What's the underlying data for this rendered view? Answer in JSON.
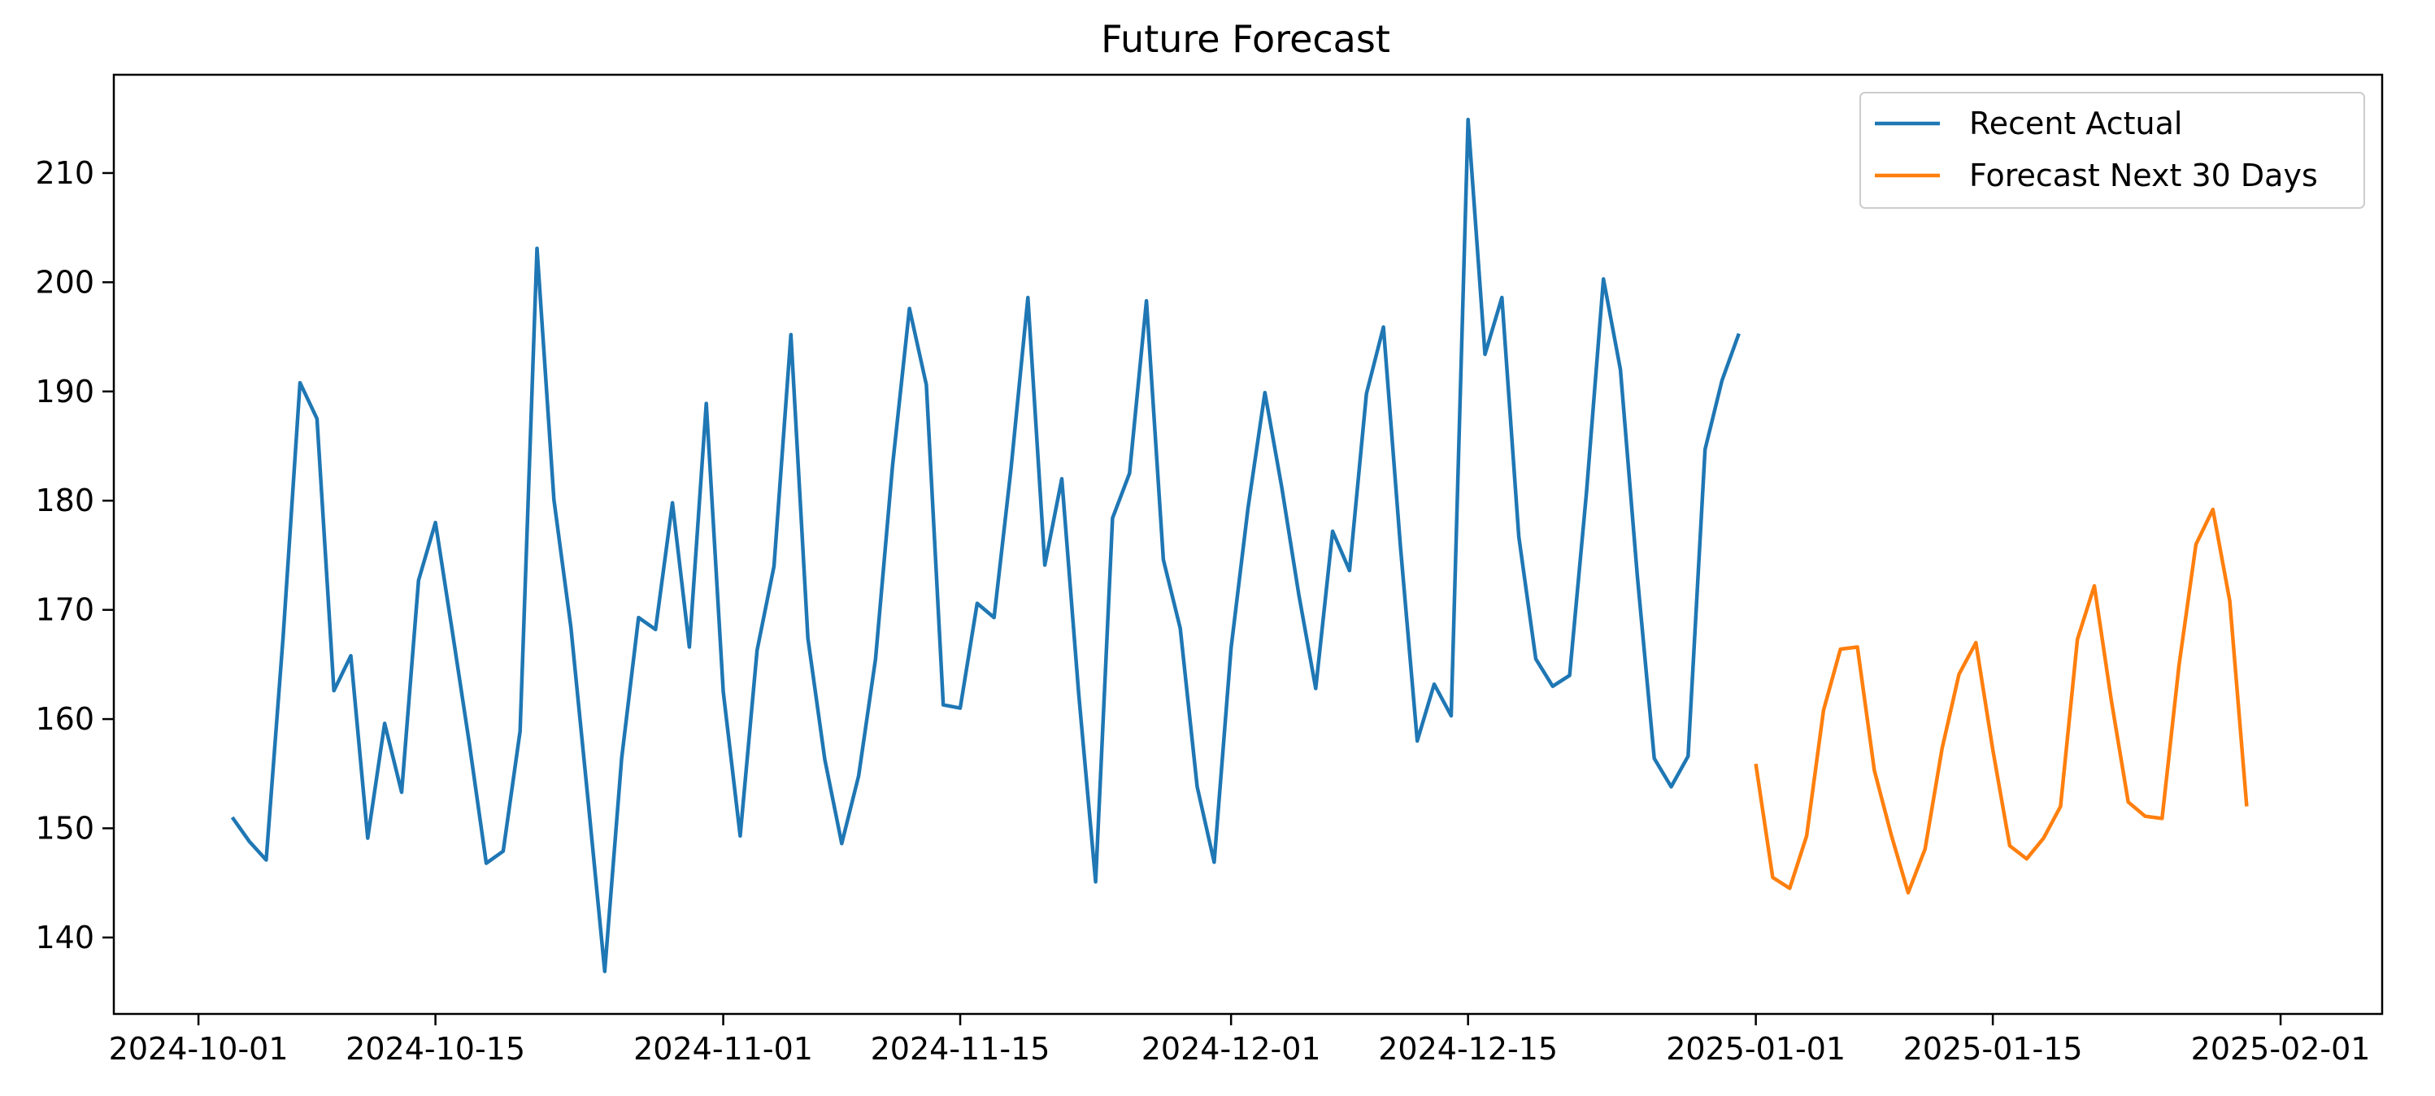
{
  "chart_data": {
    "type": "line",
    "title": "Future Forecast",
    "xlabel": "",
    "ylabel": "",
    "xlim": [
      "2024-09-26",
      "2025-02-07"
    ],
    "ylim": [
      133,
      219
    ],
    "x_ticks": [
      "2024-10-01",
      "2024-10-15",
      "2024-11-01",
      "2024-11-15",
      "2024-12-01",
      "2024-12-15",
      "2025-01-01",
      "2025-01-15",
      "2025-02-01"
    ],
    "y_ticks": [
      140,
      150,
      160,
      170,
      180,
      190,
      200,
      210
    ],
    "grid": false,
    "legend": "top-right",
    "series": [
      {
        "name": "Recent Actual",
        "color": "#1f77b4",
        "start_date": "2024-10-03",
        "values": [
          151.0,
          148.8,
          147.1,
          167.5,
          190.8,
          187.5,
          162.6,
          165.8,
          149.1,
          159.6,
          153.3,
          172.7,
          178.0,
          168.0,
          157.8,
          146.8,
          147.9,
          158.9,
          203.1,
          180.1,
          168.4,
          152.8,
          136.9,
          156.4,
          169.3,
          168.2,
          179.8,
          166.6,
          188.9,
          162.5,
          149.3,
          166.3,
          174.0,
          195.2,
          167.4,
          156.3,
          148.6,
          154.8,
          165.5,
          183.2,
          197.6,
          190.6,
          161.3,
          161.0,
          170.6,
          169.3,
          182.9,
          198.6,
          174.1,
          182.0,
          162.3,
          145.1,
          178.4,
          182.5,
          198.3,
          174.6,
          168.3,
          153.8,
          146.9,
          166.5,
          179.3,
          189.9,
          181.2,
          171.4,
          162.8,
          177.2,
          173.6,
          189.8,
          195.9,
          175.9,
          158.0,
          163.2,
          160.3,
          214.9,
          193.4,
          198.6,
          176.7,
          165.5,
          163.0,
          164.0,
          180.8,
          200.3,
          192.0,
          173.1,
          156.4,
          153.8,
          156.6,
          184.7,
          191.0,
          195.3
        ]
      },
      {
        "name": "Forecast Next 30 Days",
        "color": "#ff7f0e",
        "start_date": "2025-01-01",
        "values": [
          155.9,
          145.5,
          144.5,
          149.3,
          160.8,
          166.4,
          166.6,
          155.3,
          149.4,
          144.1,
          148.1,
          157.3,
          164.1,
          167.0,
          157.2,
          148.4,
          147.2,
          149.1,
          152.0,
          167.3,
          172.2,
          161.7,
          152.4,
          151.1,
          150.9,
          164.9,
          176.0,
          179.2,
          170.8,
          152.0
        ]
      }
    ]
  }
}
